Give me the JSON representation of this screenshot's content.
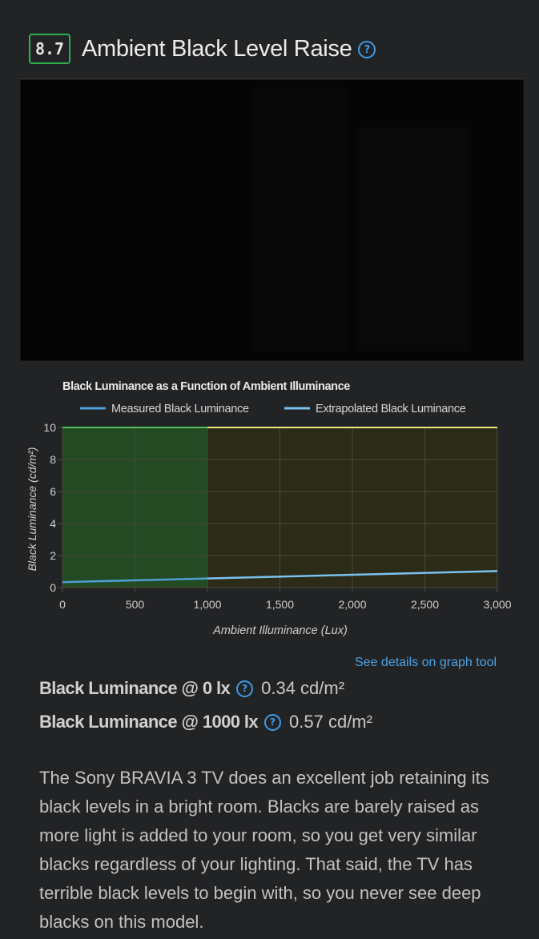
{
  "header": {
    "score": "8.7",
    "title": "Ambient Black Level Raise",
    "help_icon": "question-circle-icon"
  },
  "chart_data": {
    "type": "line",
    "title": "Black Luminance as a Function of Ambient Illuminance",
    "xlabel": "Ambient Illuminance (Lux)",
    "ylabel": "Black Luminance (cd/m²)",
    "xlim": [
      0,
      3000
    ],
    "ylim": [
      0,
      10
    ],
    "x_ticks": [
      0,
      500,
      1000,
      1500,
      2000,
      2500,
      3000
    ],
    "x_tick_labels": [
      "0",
      "500",
      "1,000",
      "1,500",
      "2,000",
      "2,500",
      "3,000"
    ],
    "y_ticks": [
      0,
      2,
      4,
      6,
      8,
      10
    ],
    "y_tick_labels": [
      "0",
      "2",
      "4",
      "6",
      "8",
      "10"
    ],
    "grid": true,
    "legend_position": "top",
    "regions": [
      {
        "x": [
          0,
          1000
        ],
        "color": "#234a22"
      },
      {
        "x": [
          1000,
          3000
        ],
        "color": "#2b2b18"
      }
    ],
    "series": [
      {
        "name": "Measured Black Luminance",
        "color": "#4f9fd8",
        "x": [
          0,
          1000
        ],
        "y": [
          0.34,
          0.57
        ]
      },
      {
        "name": "Extrapolated Black Luminance",
        "color": "#7bc2f0",
        "x": [
          1000,
          3000
        ],
        "y": [
          0.57,
          1.03
        ]
      }
    ]
  },
  "link": {
    "label": "See details on graph tool"
  },
  "stats": [
    {
      "label": "Black Luminance @ 0 lx",
      "value": "0.34 cd/m²"
    },
    {
      "label": "Black Luminance @ 1000 lx",
      "value": "0.57 cd/m²"
    }
  ],
  "description": "The Sony BRAVIA 3 TV does an excellent job retaining its black levels in a bright room. Blacks are barely raised as more light is added to your room, so you get very similar blacks regardless of your lighting. That said, the TV has terrible black levels to begin with, so you never see deep blacks on this model."
}
